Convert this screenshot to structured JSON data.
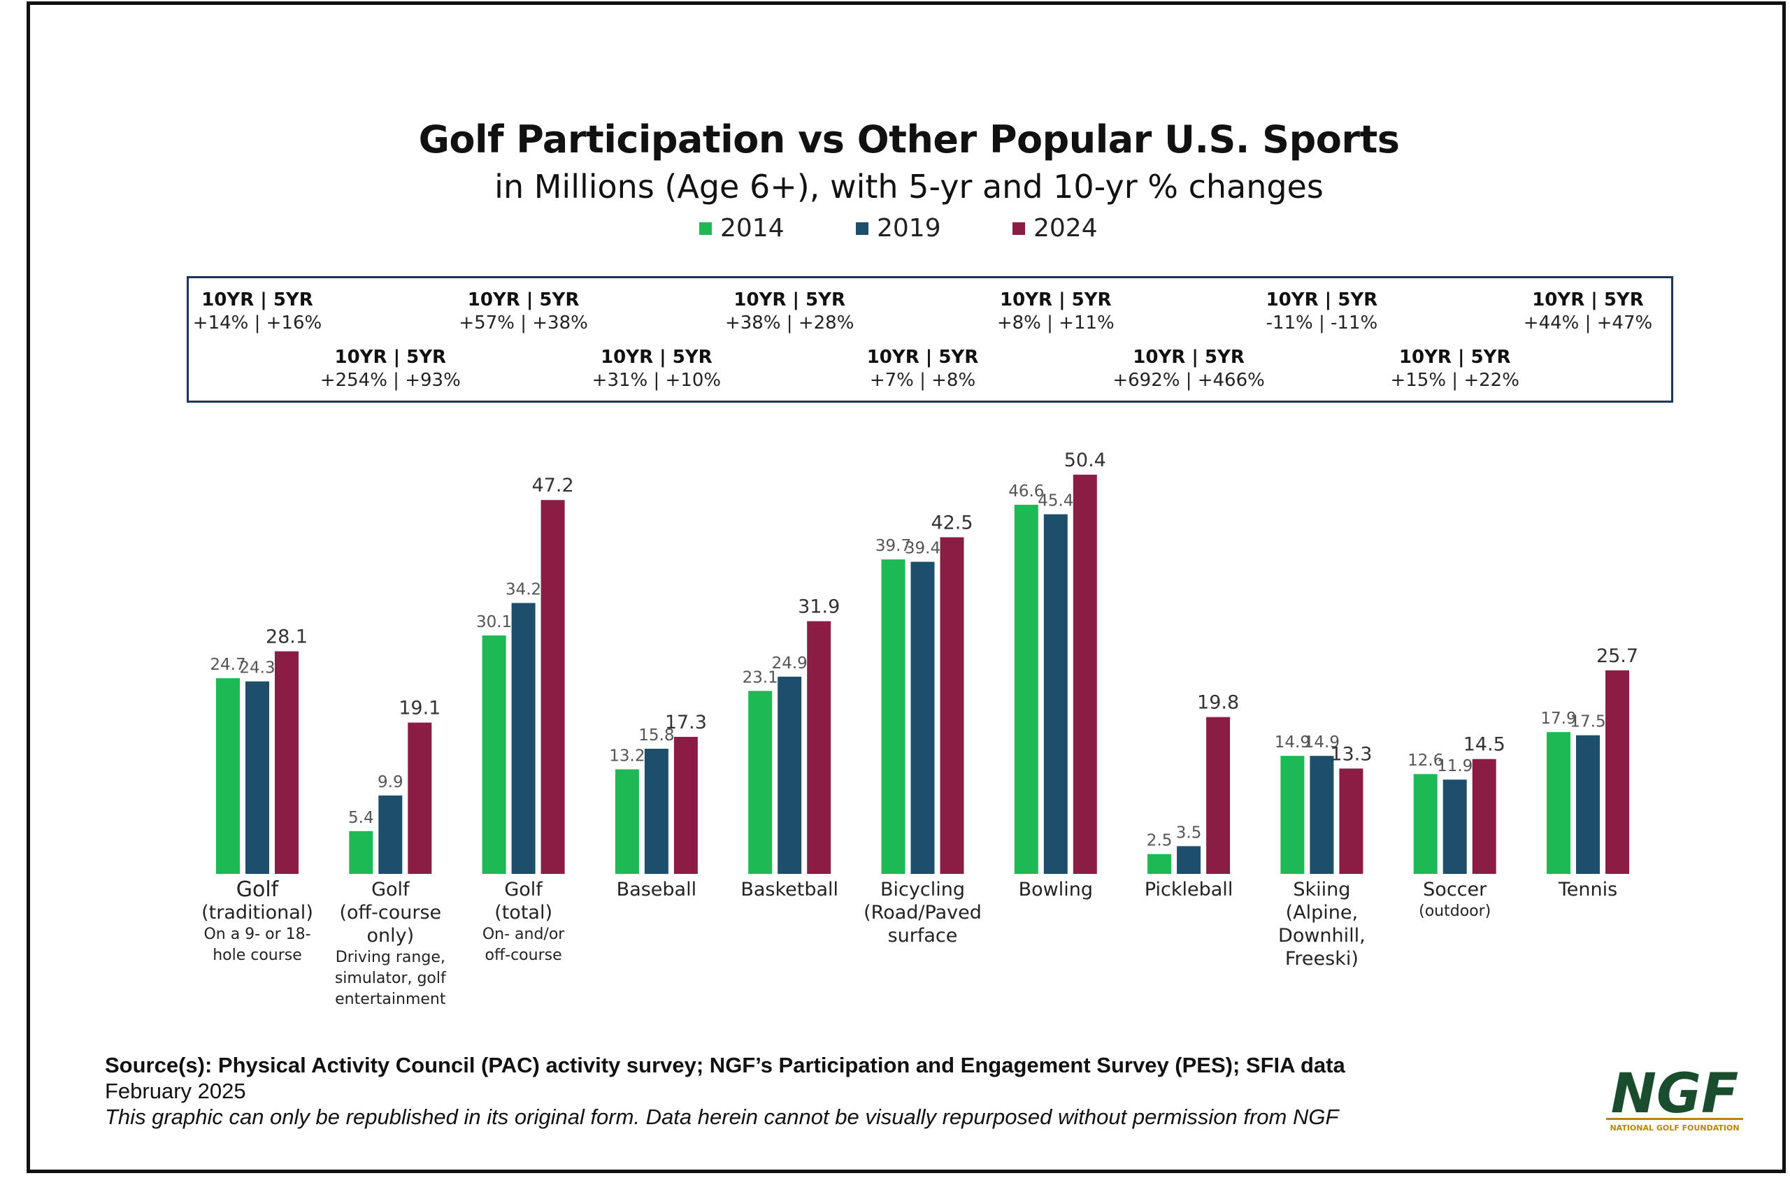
{
  "title": "Golf Participation vs Other Popular U.S. Sports",
  "subtitle": "in Millions (Age 6+), with 5-yr and 10-yr % changes",
  "legend": [
    {
      "label": "2014",
      "color": "#1db954"
    },
    {
      "label": "2019",
      "color": "#1d4e6b"
    },
    {
      "label": "2024",
      "color": "#8b1d45"
    }
  ],
  "changes_header": "10YR | 5YR",
  "changes": [
    "+14% | +16%",
    "+254% | +93%",
    "+57% | +38%",
    "+31% | +10%",
    "+38% | +28%",
    "+7% | +8%",
    "+8% | +11%",
    "+692% | +466%",
    "-11% | -11%",
    "+15% | +22%",
    "+44% | +47%"
  ],
  "categories": [
    {
      "main": [
        "Golf",
        "(traditional)"
      ],
      "sub": [
        "On a 9- or 18-",
        "hole course"
      ]
    },
    {
      "main": [
        "Golf",
        "(off-course",
        "only)"
      ],
      "sub": [
        "Driving range,",
        "simulator, golf",
        "entertainment"
      ]
    },
    {
      "main": [
        "Golf",
        "(total)"
      ],
      "sub": [
        "On- and/or",
        "off-course"
      ]
    },
    {
      "main": [
        "Baseball"
      ],
      "sub": []
    },
    {
      "main": [
        "Basketball"
      ],
      "sub": []
    },
    {
      "main": [
        "Bicycling",
        "(Road/Paved",
        "surface"
      ],
      "sub": []
    },
    {
      "main": [
        "Bowling"
      ],
      "sub": []
    },
    {
      "main": [
        "Pickleball"
      ],
      "sub": []
    },
    {
      "main": [
        "Skiing",
        "(Alpine,",
        "Downhill,",
        "Freeski)"
      ],
      "sub": []
    },
    {
      "main": [
        "Soccer"
      ],
      "sub": [
        "(outdoor)"
      ]
    },
    {
      "main": [
        "Tennis"
      ],
      "sub": []
    }
  ],
  "chart_data": {
    "type": "bar",
    "title": "Golf Participation vs Other Popular U.S. Sports",
    "subtitle": "in Millions (Age 6+), with 5-yr and 10-yr % changes",
    "categories": [
      "Golf (traditional)",
      "Golf (off-course only)",
      "Golf (total)",
      "Baseball",
      "Basketball",
      "Bicycling (Road/Paved surface",
      "Bowling",
      "Pickleball",
      "Skiing (Alpine, Downhill, Freeski)",
      "Soccer (outdoor)",
      "Tennis"
    ],
    "series": [
      {
        "name": "2014",
        "color": "#1db954",
        "values": [
          24.7,
          5.4,
          30.1,
          13.2,
          23.1,
          39.7,
          46.6,
          2.5,
          14.9,
          12.6,
          17.9
        ]
      },
      {
        "name": "2019",
        "color": "#1d4e6b",
        "values": [
          24.3,
          9.9,
          34.2,
          15.8,
          24.9,
          39.4,
          45.4,
          3.5,
          14.9,
          11.9,
          17.5
        ]
      },
      {
        "name": "2024",
        "color": "#8b1d45",
        "values": [
          28.1,
          19.1,
          47.2,
          17.3,
          31.9,
          42.5,
          50.4,
          19.8,
          13.3,
          14.5,
          25.7
        ]
      }
    ],
    "ylim": [
      0,
      52
    ],
    "grid": false,
    "legend_position": "top-center",
    "xlabel": "",
    "ylabel": ""
  },
  "source": {
    "line1": "Source(s): Physical Activity Council (PAC) activity survey; NGF’s Participation and Engagement Survey (PES); SFIA data",
    "line2": "February 2025",
    "line3": "This graphic can only be republished in its original form. Data herein cannot be visually repurposed without permission from NGF"
  },
  "logo": {
    "text": "NGF",
    "subtext": "NATIONAL GOLF FOUNDATION",
    "color": "#1a4d2e",
    "accent": "#b8860b"
  }
}
